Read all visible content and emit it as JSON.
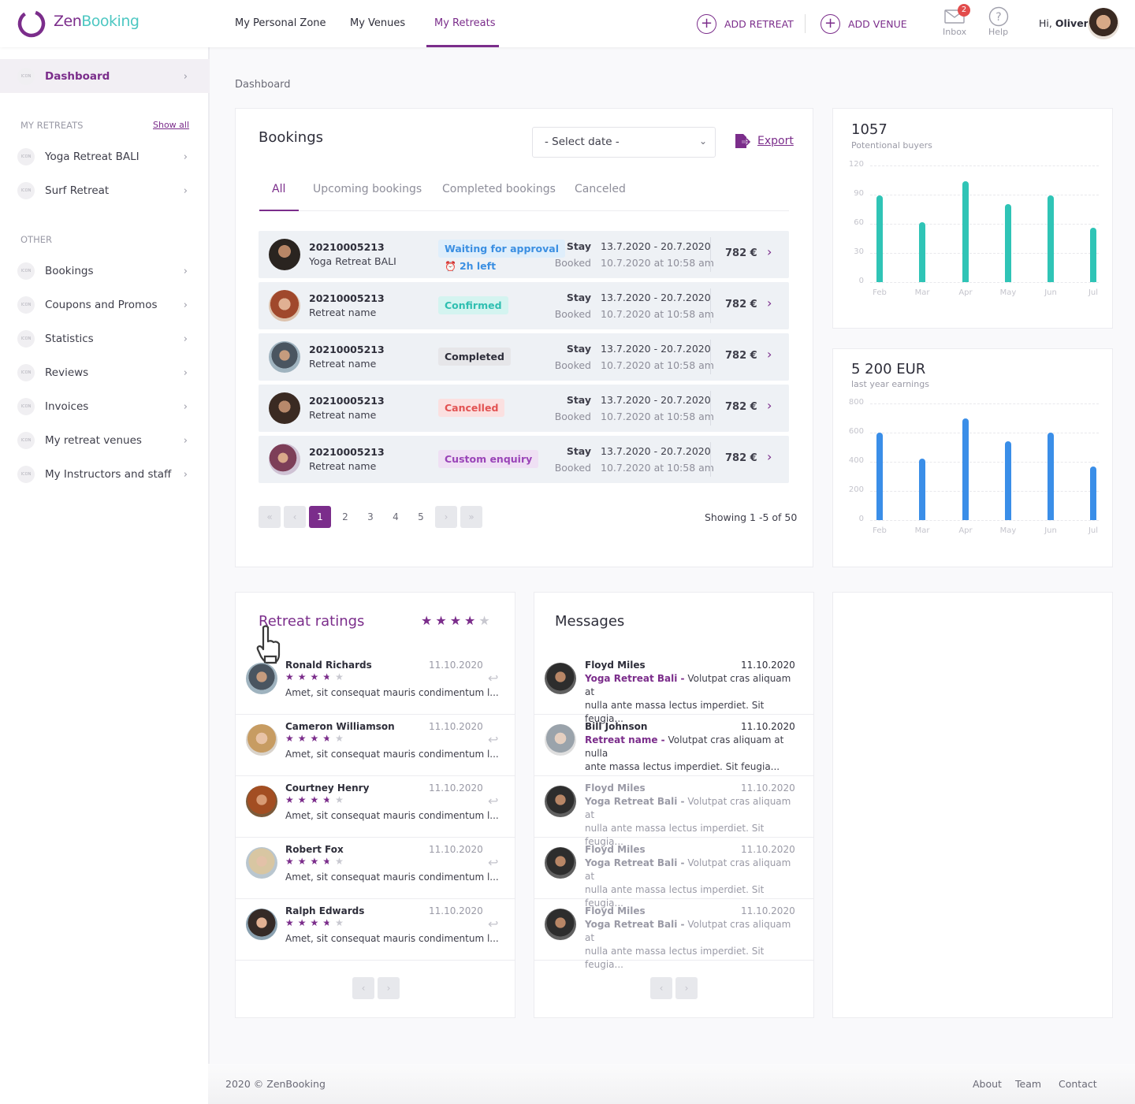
{
  "header": {
    "logo_part1": "Zen",
    "logo_part2": "Booking",
    "nav": [
      "My Personal Zone",
      "My Venues",
      "My Retreats"
    ],
    "add_retreat": "ADD RETREAT",
    "add_venue": "ADD VENUE",
    "inbox_label": "Inbox",
    "inbox_count": "2",
    "help_label": "Help",
    "greeting": "Hi,",
    "user_name": "Oliver"
  },
  "sidebar": {
    "icon_placeholder": "ICON",
    "dashboard": "Dashboard",
    "my_retreats_heading": "MY RETREATS",
    "show_all": "Show all",
    "retreats": [
      "Yoga Retreat BALI",
      "Surf Retreat"
    ],
    "other_heading": "OTHER",
    "other_items": [
      "Bookings",
      "Coupons and Promos",
      "Statistics",
      "Reviews",
      "Invoices",
      "My retreat venues",
      "My Instructors and staff"
    ]
  },
  "breadcrumb": "Dashboard",
  "bookings": {
    "title": "Bookings",
    "select_date": "- Select date -",
    "export": "Export",
    "tabs": [
      "All",
      "Upcoming bookings",
      "Completed bookings",
      "Canceled"
    ],
    "stay_label": "Stay",
    "booked_label": "Booked",
    "rows": [
      {
        "id": "20210005213",
        "name": "Yoga Retreat BALI",
        "status": "Waiting for approval",
        "timer": "2h left",
        "stay": "13.7.2020 - 20.7.2020",
        "booked": "10.7.2020 at 10:58 am",
        "price": "782 €"
      },
      {
        "id": "20210005213",
        "name": "Retreat name",
        "status": "Confirmed",
        "timer": "",
        "stay": "13.7.2020 - 20.7.2020",
        "booked": "10.7.2020 at 10:58 am",
        "price": "782 €"
      },
      {
        "id": "20210005213",
        "name": "Retreat name",
        "status": "Completed",
        "timer": "",
        "stay": "13.7.2020 - 20.7.2020",
        "booked": "10.7.2020 at 10:58 am",
        "price": "782 €"
      },
      {
        "id": "20210005213",
        "name": "Retreat name",
        "status": "Cancelled",
        "timer": "",
        "stay": "13.7.2020 - 20.7.2020",
        "booked": "10.7.2020 at 10:58 am",
        "price": "782 €"
      },
      {
        "id": "20210005213",
        "name": "Retreat name",
        "status": "Custom enquiry",
        "timer": "",
        "stay": "13.7.2020 - 20.7.2020",
        "booked": "10.7.2020 at 10:58 am",
        "price": "782 €"
      }
    ],
    "pages": [
      "1",
      "2",
      "3",
      "4",
      "5"
    ],
    "showing": "Showing 1 -5 of 50"
  },
  "chart_data": [
    {
      "type": "bar",
      "title": "1057",
      "subtitle": "Potentional buyers",
      "categories": [
        "Feb",
        "Mar",
        "Apr",
        "May",
        "Jun",
        "Jul"
      ],
      "values": [
        89,
        62,
        104,
        80,
        89,
        56
      ],
      "yticks": [
        0,
        30,
        60,
        90,
        120
      ],
      "ylim": [
        0,
        120
      ],
      "color": "#2fc4b6",
      "grid": true
    },
    {
      "type": "bar",
      "title": "5 200 EUR",
      "subtitle": "last year earnings",
      "categories": [
        "Feb",
        "Mar",
        "Apr",
        "May",
        "Jun",
        "Jul"
      ],
      "values": [
        600,
        420,
        700,
        540,
        600,
        370
      ],
      "yticks": [
        0,
        200,
        400,
        600,
        800
      ],
      "ylim": [
        0,
        800
      ],
      "color": "#3a8ee8",
      "grid": true
    }
  ],
  "ratings": {
    "title": "Retreat ratings",
    "overall_stars": 4,
    "items": [
      {
        "name": "Ronald Richards",
        "date": "11.10.2020",
        "stars": 3.5,
        "text": "Amet, sit consequat mauris condimentum l..."
      },
      {
        "name": "Cameron Williamson",
        "date": "11.10.2020",
        "stars": 3.5,
        "text": "Amet, sit consequat mauris condimentum l..."
      },
      {
        "name": "Courtney Henry",
        "date": "11.10.2020",
        "stars": 3.5,
        "text": "Amet, sit consequat mauris condimentum l..."
      },
      {
        "name": "Robert Fox",
        "date": "11.10.2020",
        "stars": 3.5,
        "text": "Amet, sit consequat mauris condimentum l..."
      },
      {
        "name": "Ralph Edwards",
        "date": "11.10.2020",
        "stars": 3.5,
        "text": "Amet, sit consequat mauris condimentum l..."
      }
    ]
  },
  "messages": {
    "title": "Messages",
    "items": [
      {
        "name": "Floyd Miles",
        "date": "11.10.2020",
        "subject": "Yoga Retreat Bali -",
        "line1": "Volutpat cras aliquam at",
        "line2": "nulla ante massa lectus imperdiet. Sit feugia..."
      },
      {
        "name": "Bill Johnson",
        "date": "11.10.2020",
        "subject": "Retreat name -",
        "line1": "Volutpat cras aliquam at nulla",
        "line2": "ante massa lectus imperdiet. Sit feugia..."
      },
      {
        "name": "Floyd Miles",
        "date": "11.10.2020",
        "subject": "Yoga Retreat Bali -",
        "line1": "Volutpat cras aliquam at",
        "line2": "nulla ante massa lectus imperdiet. Sit feugia..."
      },
      {
        "name": "Floyd Miles",
        "date": "11.10.2020",
        "subject": "Yoga Retreat Bali -",
        "line1": "Volutpat cras aliquam at",
        "line2": "nulla ante massa lectus imperdiet. Sit feugia..."
      },
      {
        "name": "Floyd Miles",
        "date": "11.10.2020",
        "subject": "Yoga Retreat Bali -",
        "line1": "Volutpat cras aliquam at",
        "line2": "nulla ante massa lectus imperdiet. Sit feugia..."
      }
    ]
  },
  "footer": {
    "copyright": "2020 © ZenBooking",
    "links": [
      "About",
      "Team",
      "Contact"
    ]
  },
  "colors": {
    "brand": "#7b2d8b",
    "teal": "#4dc7c2"
  }
}
